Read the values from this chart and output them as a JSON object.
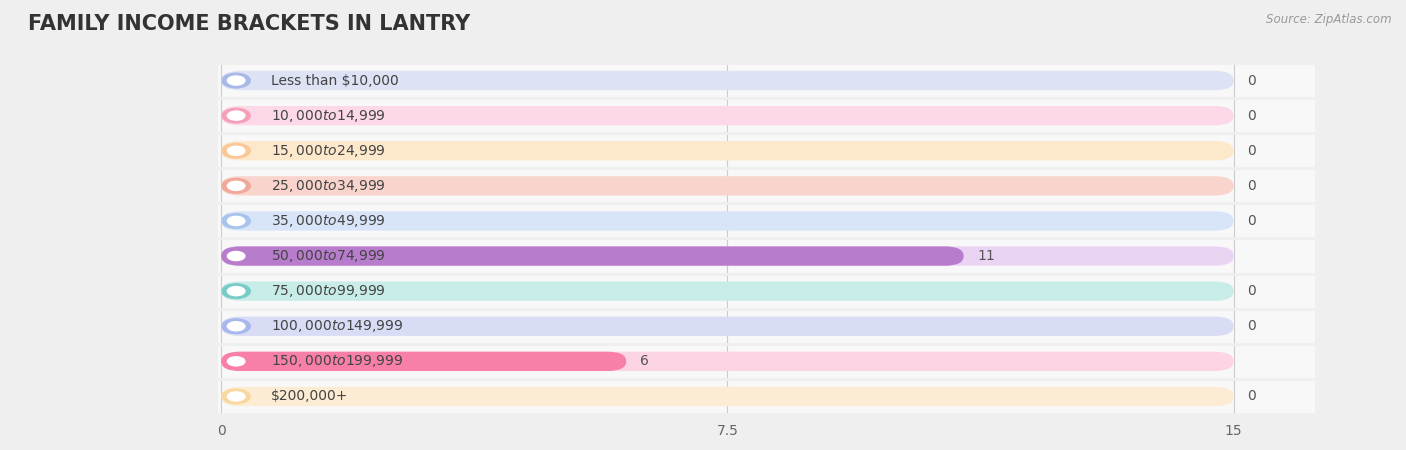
{
  "title": "FAMILY INCOME BRACKETS IN LANTRY",
  "source": "Source: ZipAtlas.com",
  "categories": [
    "Less than $10,000",
    "$10,000 to $14,999",
    "$15,000 to $24,999",
    "$25,000 to $34,999",
    "$35,000 to $49,999",
    "$50,000 to $74,999",
    "$75,000 to $99,999",
    "$100,000 to $149,999",
    "$150,000 to $199,999",
    "$200,000+"
  ],
  "values": [
    0,
    0,
    0,
    0,
    0,
    11,
    0,
    0,
    6,
    0
  ],
  "bar_colors": [
    "#a8b8e8",
    "#f4a0b8",
    "#f8c898",
    "#f0a898",
    "#a8c4ec",
    "#b87ccc",
    "#78ccc8",
    "#a8b8ec",
    "#f880a8",
    "#f8d8a0"
  ],
  "bar_background_colors": [
    "#dde2f4",
    "#fcd8e8",
    "#fde8cc",
    "#f8d4cc",
    "#d8e4f8",
    "#ead4f4",
    "#c8ece8",
    "#d8dcf4",
    "#fdd4e4",
    "#fdecd4"
  ],
  "xlim": [
    0,
    15
  ],
  "xticks": [
    0,
    7.5,
    15
  ],
  "background_color": "#efefef",
  "row_bg_color": "#f8f8f8",
  "row_alt_color": "#efefef",
  "title_fontsize": 15,
  "label_fontsize": 10,
  "value_fontsize": 10
}
